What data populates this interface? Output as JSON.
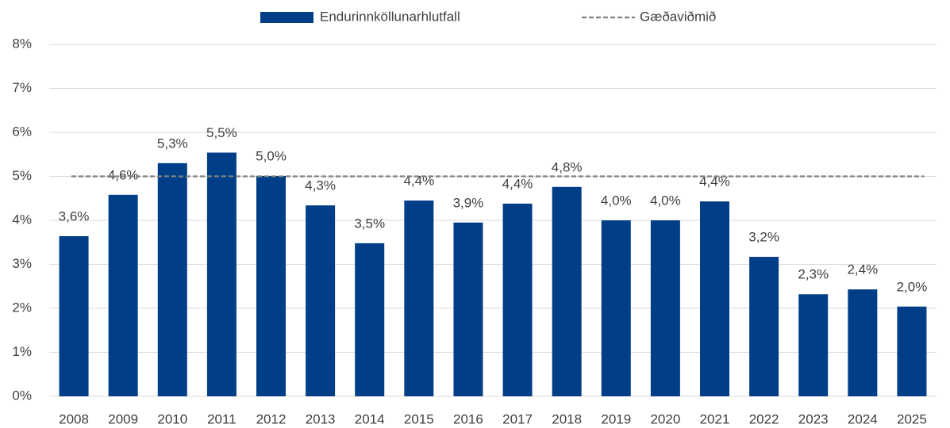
{
  "chart_data": {
    "type": "bar",
    "categories": [
      "2008",
      "2009",
      "2010",
      "2011",
      "2012",
      "2013",
      "2014",
      "2015",
      "2016",
      "2017",
      "2018",
      "2019",
      "2020",
      "2021",
      "2022",
      "2023",
      "2024",
      "2025"
    ],
    "series": [
      {
        "name": "Endurinnköllunarhlutfall",
        "color": "#003f87",
        "values": [
          3.64,
          4.58,
          5.3,
          5.54,
          5.01,
          4.34,
          3.48,
          4.45,
          3.95,
          4.38,
          4.76,
          4.0,
          4.0,
          4.43,
          3.17,
          2.32,
          2.43,
          2.04
        ],
        "value_labels": [
          "3,6%",
          "4,6%",
          "5,3%",
          "5,5%",
          "5,0%",
          "4,3%",
          "3,5%",
          "4,4%",
          "3,9%",
          "4,4%",
          "4,8%",
          "4,0%",
          "4,0%",
          "4,4%",
          "3,2%",
          "2,3%",
          "2,4%",
          "2,0%"
        ]
      }
    ],
    "reference_lines": [
      {
        "name": "Gæðaviðmið",
        "value": 5,
        "color": "#808080"
      }
    ],
    "ylim": [
      0,
      8
    ],
    "yticks": [
      {
        "value": 0,
        "label": "0%"
      },
      {
        "value": 1,
        "label": "1%"
      },
      {
        "value": 2,
        "label": "2%"
      },
      {
        "value": 3,
        "label": "3%"
      },
      {
        "value": 4,
        "label": "4%"
      },
      {
        "value": 5,
        "label": "5%"
      },
      {
        "value": 6,
        "label": "6%"
      },
      {
        "value": 7,
        "label": "7%"
      },
      {
        "value": 8,
        "label": "8%"
      }
    ],
    "grid": true,
    "legend": "top"
  }
}
